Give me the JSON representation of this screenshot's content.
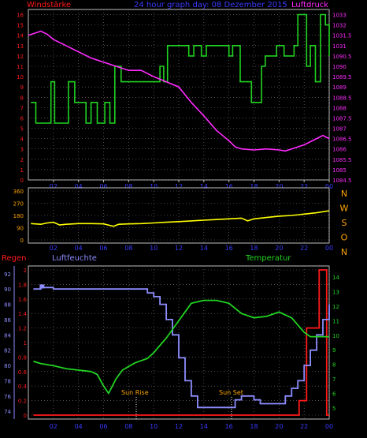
{
  "colors": {
    "background": "#000000",
    "frame": "#c0c0c0",
    "grid": "#808080",
    "red": "#ff1a1a",
    "blue": "#3a3aff",
    "green": "#21d321",
    "magenta": "#ff2bff",
    "yellow": "#ffff00",
    "orange": "#ffa500",
    "lavender": "#8d8dff",
    "white": "#e0e0e0"
  },
  "chart_data": [
    {
      "type": "line",
      "title": "24 hour graph day: 08 Dezember 2015",
      "left_label": "Windstärke",
      "right_label": "Luftdruck",
      "x_ticks": [
        "02",
        "04",
        "06",
        "08",
        "10",
        "12",
        "14",
        "16",
        "18",
        "20",
        "22",
        "00"
      ],
      "left_ticks": [
        "0",
        "1",
        "2",
        "3",
        "4",
        "5",
        "6",
        "7",
        "8",
        "9",
        "10",
        "11",
        "12",
        "13",
        "14",
        "15",
        "16"
      ],
      "right_ticks": [
        "1084.5",
        "1085",
        "1085.5",
        "1086",
        "1086.5",
        "1087",
        "1087.5",
        "1088",
        "1088.5",
        "1089",
        "1089.5",
        "1090",
        "1090.5",
        "1031",
        "1031.5",
        "1032",
        "1033"
      ],
      "xlim": [
        0,
        24
      ],
      "ylim_left": [
        0,
        16.5
      ],
      "ylim_right": [
        1084,
        1092.25
      ],
      "series": [
        {
          "name": "Windstärke",
          "axis": "left",
          "color": "green",
          "step": true,
          "points": [
            [
              0.2,
              7.5
            ],
            [
              0.6,
              5.5
            ],
            [
              1.8,
              9.5
            ],
            [
              2.1,
              5.5
            ],
            [
              3.2,
              9.5
            ],
            [
              3.7,
              7.5
            ],
            [
              4.6,
              5.5
            ],
            [
              5,
              7.5
            ],
            [
              5.5,
              5.5
            ],
            [
              6.1,
              7.5
            ],
            [
              6.5,
              5.5
            ],
            [
              6.9,
              11
            ],
            [
              7.4,
              9.5
            ],
            [
              10.5,
              11
            ],
            [
              10.8,
              9.5
            ],
            [
              11.1,
              13
            ],
            [
              12.8,
              12
            ],
            [
              13.2,
              13
            ],
            [
              13.8,
              12
            ],
            [
              14.2,
              13
            ],
            [
              15.6,
              13
            ],
            [
              16,
              12
            ],
            [
              16.3,
              13
            ],
            [
              16.9,
              9.5
            ],
            [
              17.8,
              7.5
            ],
            [
              18.6,
              11
            ],
            [
              18.9,
              12
            ],
            [
              19.8,
              13
            ],
            [
              20.4,
              12
            ],
            [
              21.2,
              13
            ],
            [
              21.5,
              16
            ],
            [
              22.2,
              11
            ],
            [
              22.5,
              13
            ],
            [
              22.9,
              9.5
            ],
            [
              23.3,
              16
            ],
            [
              23.7,
              15
            ],
            [
              24,
              12
            ]
          ]
        },
        {
          "name": "Luftdruck",
          "axis": "right",
          "color": "magenta",
          "points": [
            [
              0,
              1091
            ],
            [
              0.5,
              1091.1
            ],
            [
              1,
              1091.2
            ],
            [
              1.5,
              1091.05
            ],
            [
              2,
              1090.8
            ],
            [
              3,
              1090.5
            ],
            [
              4,
              1090.2
            ],
            [
              5,
              1089.9
            ],
            [
              6,
              1089.7
            ],
            [
              7,
              1089.5
            ],
            [
              8,
              1089.3
            ],
            [
              9,
              1089.3
            ],
            [
              10,
              1089
            ],
            [
              11,
              1088.75
            ],
            [
              12,
              1088.5
            ],
            [
              13,
              1087.75
            ],
            [
              14,
              1087.1
            ],
            [
              15,
              1086.4
            ],
            [
              16,
              1085.9
            ],
            [
              16.5,
              1085.6
            ],
            [
              17,
              1085.5
            ],
            [
              18,
              1085.45
            ],
            [
              19,
              1085.5
            ],
            [
              20,
              1085.45
            ],
            [
              20.5,
              1085.4
            ],
            [
              21,
              1085.5
            ],
            [
              22,
              1085.7
            ],
            [
              23,
              1086
            ],
            [
              23.5,
              1086.15
            ],
            [
              24,
              1086
            ]
          ]
        }
      ]
    },
    {
      "type": "line",
      "right_letters": [
        "N",
        "W",
        "S",
        "O",
        "N"
      ],
      "y_ticks": [
        "0",
        "90",
        "180",
        "270",
        "360"
      ],
      "x_ticks": [
        "02",
        "04",
        "06",
        "08",
        "10",
        "12",
        "14",
        "16",
        "18",
        "20",
        "22",
        "00"
      ],
      "xlim": [
        0,
        24
      ],
      "ylim": [
        0,
        360
      ],
      "series": [
        {
          "name": "Windrichtung",
          "color": "yellow",
          "points": [
            [
              0.2,
              120
            ],
            [
              1,
              115
            ],
            [
              1.5,
              125
            ],
            [
              2,
              130
            ],
            [
              2.5,
              110
            ],
            [
              3,
              115
            ],
            [
              4,
              120
            ],
            [
              5,
              120
            ],
            [
              6,
              118
            ],
            [
              6.8,
              100
            ],
            [
              7.2,
              115
            ],
            [
              8,
              118
            ],
            [
              9,
              120
            ],
            [
              10,
              125
            ],
            [
              11,
              130
            ],
            [
              12,
              135
            ],
            [
              13,
              140
            ],
            [
              14,
              145
            ],
            [
              15,
              150
            ],
            [
              16,
              155
            ],
            [
              17,
              160
            ],
            [
              17.5,
              140
            ],
            [
              18,
              155
            ],
            [
              19,
              165
            ],
            [
              20,
              175
            ],
            [
              21,
              180
            ],
            [
              22,
              190
            ],
            [
              23,
              200
            ],
            [
              24,
              215
            ]
          ]
        }
      ]
    },
    {
      "type": "line",
      "left_label": "Regen",
      "left2_label": "Luftfeuchte",
      "right_label": "Temperatur",
      "annotations": [
        "Sun Rise",
        "Sun Set"
      ],
      "x_ticks": [
        "02",
        "04",
        "06",
        "08",
        "10",
        "12",
        "14",
        "16",
        "18",
        "20",
        "22",
        "00"
      ],
      "rain_ticks": [
        "0",
        "0.2",
        "0.4",
        "0.6",
        "0.8",
        "1",
        "1.2",
        "1.4",
        "1.6",
        "1.8",
        "2"
      ],
      "humidity_ticks": [
        "74",
        "76",
        "78",
        "80",
        "82",
        "84",
        "86",
        "88",
        "90",
        "92"
      ],
      "temp_ticks": [
        "5",
        "6",
        "7",
        "8",
        "9",
        "10",
        "11",
        "12",
        "13",
        "14"
      ],
      "xlim": [
        0,
        24
      ],
      "rain_ylim": [
        0,
        2
      ],
      "humidity_ylim": [
        73.5,
        92.5
      ],
      "temp_ylim": [
        4.5,
        14.5
      ],
      "series": [
        {
          "name": "Regen",
          "axis": "rain",
          "color": "red",
          "step": true,
          "points": [
            [
              0.4,
              0
            ],
            [
              21.5,
              0
            ],
            [
              21.6,
              0.2
            ],
            [
              22,
              0.2
            ],
            [
              22.2,
              1.2
            ],
            [
              23,
              1.2
            ],
            [
              23.2,
              2
            ],
            [
              23.7,
              2
            ],
            [
              23.8,
              0
            ],
            [
              24,
              0
            ]
          ]
        },
        {
          "name": "Luftfeuchte",
          "axis": "humidity",
          "color": "blue",
          "step": true,
          "points": [
            [
              0.4,
              90
            ],
            [
              1,
              90.2
            ],
            [
              2,
              90
            ],
            [
              8,
              90
            ],
            [
              9,
              90
            ],
            [
              9.5,
              89.5
            ],
            [
              10,
              89
            ],
            [
              10.5,
              88
            ],
            [
              11,
              86
            ],
            [
              11.5,
              84
            ],
            [
              12,
              81
            ],
            [
              12.5,
              78
            ],
            [
              13,
              76
            ],
            [
              13.5,
              74.5
            ],
            [
              16,
              74.5
            ],
            [
              16.5,
              75.5
            ],
            [
              17,
              76
            ],
            [
              17.8,
              76
            ],
            [
              18,
              75.5
            ],
            [
              18.5,
              75
            ],
            [
              20.2,
              75
            ],
            [
              20.5,
              76
            ],
            [
              21,
              77
            ],
            [
              21.5,
              78
            ],
            [
              22,
              80
            ],
            [
              22.5,
              82
            ],
            [
              23,
              84
            ],
            [
              23.5,
              86
            ],
            [
              24,
              88
            ]
          ]
        },
        {
          "name": "Temperatur",
          "axis": "temp",
          "color": "green",
          "points": [
            [
              0.4,
              8.2
            ],
            [
              1,
              8.05
            ],
            [
              2,
              7.9
            ],
            [
              3,
              7.7
            ],
            [
              4,
              7.6
            ],
            [
              5,
              7.5
            ],
            [
              5.5,
              7.3
            ],
            [
              6,
              6.5
            ],
            [
              6.4,
              6
            ],
            [
              7,
              7
            ],
            [
              7.5,
              7.6
            ],
            [
              8.5,
              8.1
            ],
            [
              9.5,
              8.4
            ],
            [
              10,
              8.8
            ],
            [
              11,
              9.8
            ],
            [
              12,
              11
            ],
            [
              13,
              12.2
            ],
            [
              14,
              12.4
            ],
            [
              15,
              12.4
            ],
            [
              16,
              12.2
            ],
            [
              17,
              11.5
            ],
            [
              18,
              11.2
            ],
            [
              19,
              11.3
            ],
            [
              20,
              11.6
            ],
            [
              21,
              11.2
            ],
            [
              22,
              10.2
            ],
            [
              22.5,
              9.9
            ],
            [
              23,
              9.9
            ],
            [
              24,
              9.9
            ]
          ]
        }
      ]
    }
  ]
}
